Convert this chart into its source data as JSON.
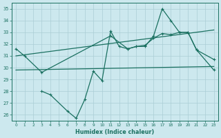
{
  "xlabel": "Humidex (Indice chaleur)",
  "x_all": [
    0,
    1,
    2,
    3,
    4,
    5,
    6,
    7,
    8,
    9,
    10,
    11,
    12,
    13,
    14,
    15,
    16,
    17,
    18,
    19,
    20,
    21,
    22,
    23
  ],
  "line_upper_x": [
    0,
    1,
    3,
    11,
    13,
    14,
    15,
    16,
    17,
    18,
    19,
    20,
    21,
    23
  ],
  "line_upper_y": [
    31.6,
    31.0,
    29.6,
    32.7,
    31.6,
    31.8,
    31.9,
    32.5,
    32.9,
    32.8,
    33.0,
    33.0,
    31.5,
    29.8
  ],
  "line_lower_x": [
    3,
    4,
    6,
    7,
    8,
    9,
    10,
    11,
    12,
    13,
    14,
    15,
    16,
    17,
    18,
    19,
    20,
    21,
    23
  ],
  "line_lower_y": [
    28.0,
    27.7,
    26.3,
    25.7,
    27.3,
    29.7,
    28.9,
    33.1,
    31.8,
    31.6,
    31.8,
    31.8,
    32.7,
    35.0,
    34.0,
    33.0,
    33.0,
    31.5,
    30.7
  ],
  "trend1_x": [
    0,
    23
  ],
  "trend1_y": [
    31.0,
    33.2
  ],
  "trend2_x": [
    0,
    23
  ],
  "trend2_y": [
    29.8,
    30.1
  ],
  "bg_color": "#cce8ee",
  "line_color": "#1a7060",
  "grid_color": "#aacdd5",
  "ylim": [
    25.5,
    35.5
  ],
  "xlim": [
    -0.5,
    23.5
  ],
  "yticks": [
    26,
    27,
    28,
    29,
    30,
    31,
    32,
    33,
    34,
    35
  ],
  "xticks": [
    0,
    1,
    2,
    3,
    4,
    5,
    6,
    7,
    8,
    9,
    10,
    11,
    12,
    13,
    14,
    15,
    16,
    17,
    18,
    19,
    20,
    21,
    22,
    23
  ]
}
